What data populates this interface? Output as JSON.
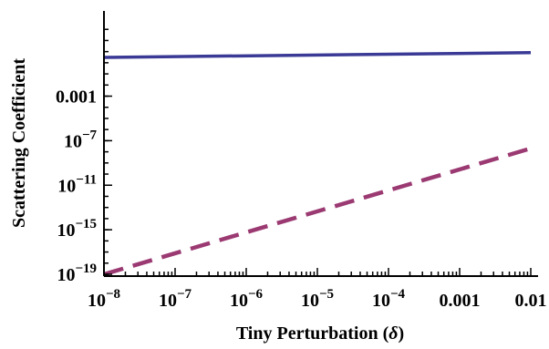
{
  "chart_data": {
    "type": "line",
    "title": "",
    "xlabel": "Tiny Perturbation (δ)",
    "ylabel": "Scattering Coefficient",
    "x_scale": "log",
    "y_scale": "log",
    "xlim": [
      1e-08,
      0.01
    ],
    "ylim": [
      1e-19,
      10000
    ],
    "x_ticks": [
      {
        "value": 1e-08,
        "base": "10",
        "exp": "−8"
      },
      {
        "value": 1e-07,
        "base": "10",
        "exp": "−7"
      },
      {
        "value": 1e-06,
        "base": "10",
        "exp": "−6"
      },
      {
        "value": 1e-05,
        "base": "10",
        "exp": "−5"
      },
      {
        "value": 0.0001,
        "base": "10",
        "exp": "−4"
      },
      {
        "value": 0.001,
        "base": "0.001",
        "exp": ""
      },
      {
        "value": 0.01,
        "base": "0.01",
        "exp": ""
      }
    ],
    "y_ticks": [
      {
        "value": 1e-19,
        "base": "10",
        "exp": "−19"
      },
      {
        "value": 1e-15,
        "base": "10",
        "exp": "−15"
      },
      {
        "value": 1e-11,
        "base": "10",
        "exp": "−11"
      },
      {
        "value": 1e-07,
        "base": "10",
        "exp": "−7"
      },
      {
        "value": 0.001,
        "base": "0.001",
        "exp": ""
      }
    ],
    "grid": false,
    "series": [
      {
        "style": "solid",
        "color": "#3a3a96",
        "x": [
          1e-08,
          0.01
        ],
        "y": [
          3,
          8
        ]
      },
      {
        "style": "dashed",
        "color": "#9b3a72",
        "x": [
          1e-08,
          0.01
        ],
        "y": [
          1e-19,
          2e-08
        ]
      }
    ]
  }
}
